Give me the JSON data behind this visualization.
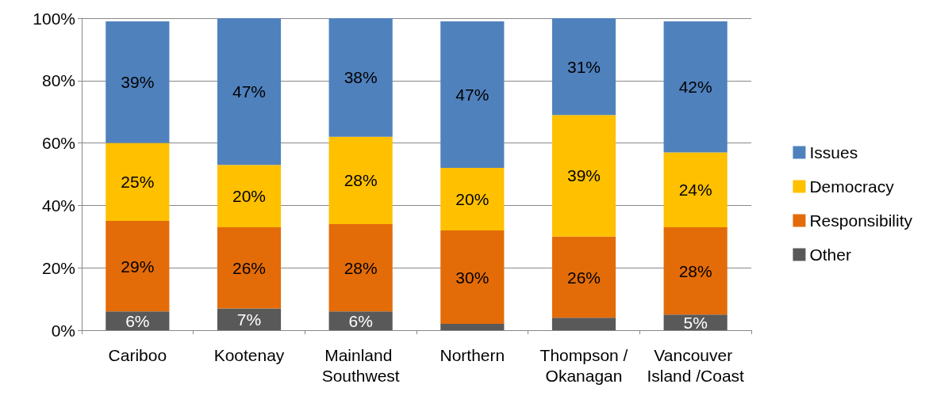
{
  "chart_data": {
    "type": "bar",
    "stacked": true,
    "categories": [
      "Cariboo",
      "Kootenay",
      "Mainland Southwest",
      "Northern",
      "Thompson /Okanagan",
      "Vancouver Island /Coast"
    ],
    "series": [
      {
        "name": "Other",
        "color": "#595959",
        "values": [
          6,
          7,
          6,
          2,
          4,
          5
        ],
        "value_labels": [
          "6%",
          "7%",
          "6%",
          null,
          null,
          "5%"
        ]
      },
      {
        "name": "Responsibility",
        "color": "#e36c09",
        "values": [
          29,
          26,
          28,
          30,
          26,
          28
        ],
        "value_labels": [
          "29%",
          "26%",
          "28%",
          "30%",
          "26%",
          "28%"
        ]
      },
      {
        "name": "Democracy",
        "color": "#ffc000",
        "values": [
          25,
          20,
          28,
          20,
          39,
          24
        ],
        "value_labels": [
          "25%",
          "20%",
          "28%",
          "20%",
          "39%",
          "24%"
        ]
      },
      {
        "name": "Issues",
        "color": "#4f81bd",
        "values": [
          39,
          47,
          38,
          47,
          31,
          42
        ],
        "value_labels": [
          "39%",
          "47%",
          "38%",
          "47%",
          "31%",
          "42%"
        ]
      }
    ],
    "ylim": [
      0,
      100
    ],
    "yticks": [
      {
        "value": 0,
        "label": "0%"
      },
      {
        "value": 20,
        "label": "20%"
      },
      {
        "value": 40,
        "label": "40%"
      },
      {
        "value": 60,
        "label": "60%"
      },
      {
        "value": 80,
        "label": "80%"
      },
      {
        "value": 100,
        "label": "100%"
      }
    ],
    "grid": "y",
    "legend": "right"
  }
}
